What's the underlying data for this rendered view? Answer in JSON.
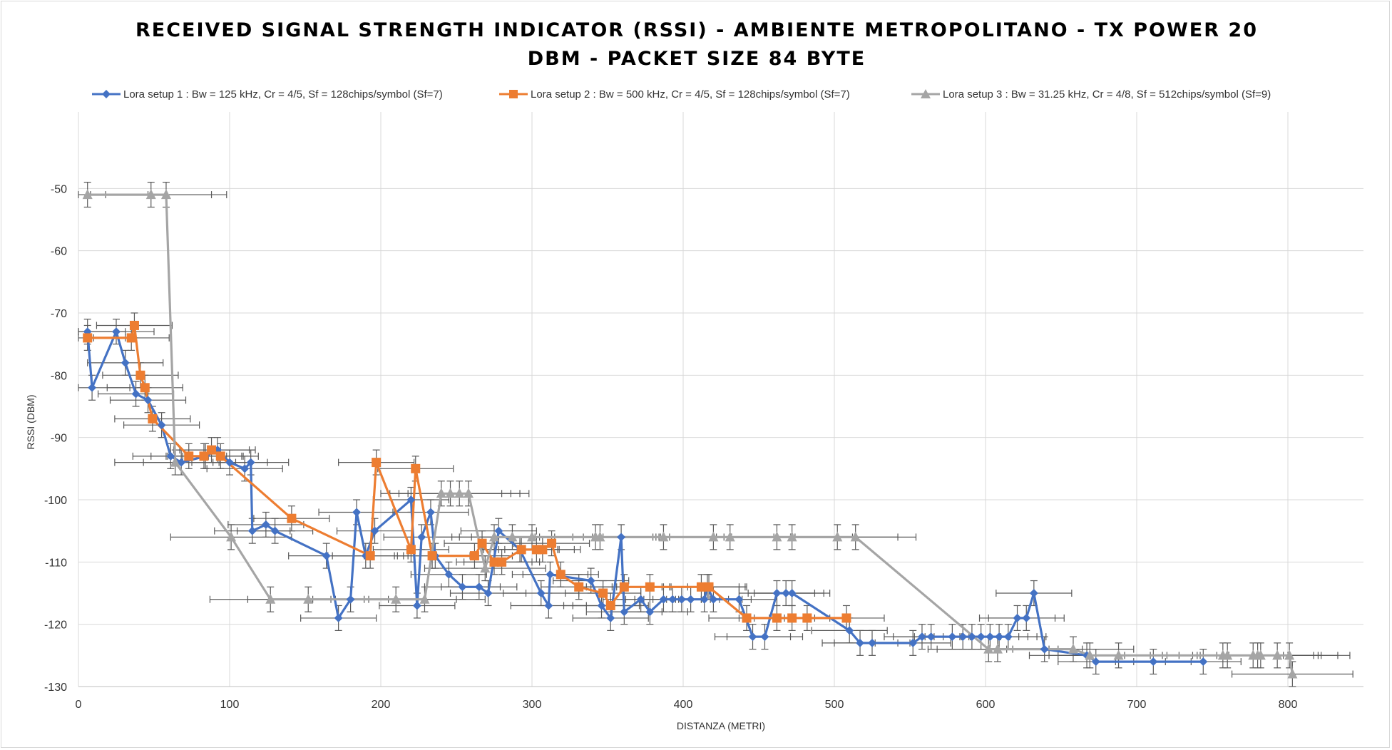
{
  "chart_data": {
    "type": "scatter",
    "title_line1": "RECEIVED SIGNAL STRENGTH INDICATOR (RSSI) - AMBIENTE METROPOLITANO - TX POWER 20",
    "title_line2": "DBM - PACKET SIZE 84 BYTE",
    "xlabel": "DISTANZA (METRI)",
    "ylabel": "RSSI (DBM)",
    "xlim": [
      0,
      850
    ],
    "ylim": [
      -130,
      -40
    ],
    "x_ticks": [
      0,
      100,
      200,
      300,
      400,
      500,
      600,
      700,
      800
    ],
    "y_ticks": [
      -50,
      -60,
      -70,
      -80,
      -90,
      -100,
      -110,
      -120,
      -130
    ],
    "grid": true,
    "legend_position": "top",
    "series": [
      {
        "name": "Lora setup 1 : Bw = 125 kHz, Cr = 4/5, Sf = 128chips/symbol (Sf=7)",
        "color": "#4472C4",
        "marker": "diamond",
        "x": [
          6,
          9,
          25,
          31,
          38,
          46,
          55,
          61,
          68,
          84,
          92,
          100,
          110,
          114,
          115,
          124,
          130,
          164,
          172,
          180,
          184,
          190,
          196,
          220,
          224,
          227,
          233,
          236,
          245,
          254,
          265,
          271,
          278,
          292,
          306,
          311,
          312,
          339,
          346,
          352,
          359,
          361,
          372,
          378,
          387,
          393,
          399,
          405,
          414,
          416,
          420,
          437,
          446,
          454,
          462,
          468,
          472,
          510,
          517,
          525,
          552,
          558,
          564,
          578,
          585,
          591,
          597,
          603,
          609,
          615,
          621,
          627,
          632,
          639,
          667,
          673,
          711,
          744
        ],
        "y": [
          -73,
          -82,
          -73,
          -78,
          -83,
          -84,
          -88,
          -93,
          -94,
          -93,
          -92,
          -94,
          -95,
          -94,
          -105,
          -104,
          -105,
          -109,
          -119,
          -116,
          -102,
          -109,
          -105,
          -100,
          -117,
          -106,
          -102,
          -109,
          -112,
          -114,
          -114,
          -115,
          -105,
          -108,
          -115,
          -117,
          -112,
          -113,
          -117,
          -119,
          -106,
          -118,
          -116,
          -118,
          -116,
          -116,
          -116,
          -116,
          -116,
          -114,
          -116,
          -116,
          -122,
          -122,
          -115,
          -115,
          -115,
          -121,
          -123,
          -123,
          -123,
          -122,
          -122,
          -122,
          -122,
          -122,
          -122,
          -122,
          -122,
          -122,
          -119,
          -119,
          -115,
          -124,
          -125,
          -126,
          -126,
          -126
        ]
      },
      {
        "name": "Lora setup 2 : Bw = 500 kHz, Cr = 4/5, Sf = 128chips/symbol (Sf=7)",
        "color": "#ED7D31",
        "marker": "square",
        "x": [
          6,
          35,
          37,
          41,
          44,
          49,
          73,
          83,
          88,
          94,
          141,
          193,
          197,
          220,
          223,
          234,
          262,
          267,
          275,
          280,
          293,
          303,
          307,
          313,
          319,
          331,
          347,
          352,
          361,
          378,
          412,
          417,
          442,
          462,
          472,
          482,
          508
        ],
        "y": [
          -74,
          -74,
          -72,
          -80,
          -82,
          -87,
          -93,
          -93,
          -92,
          -93,
          -103,
          -109,
          -94,
          -108,
          -95,
          -109,
          -109,
          -107,
          -110,
          -110,
          -108,
          -108,
          -108,
          -107,
          -112,
          -114,
          -115,
          -117,
          -114,
          -114,
          -114,
          -114,
          -119,
          -119,
          -119,
          -119,
          -119
        ]
      },
      {
        "name": "Lora setup 3 : Bw = 31.25 kHz, Cr = 4/8, Sf = 512chips/symbol (Sf=9)",
        "color": "#A5A5A5",
        "marker": "triangle",
        "x": [
          6,
          48,
          58,
          64,
          101,
          127,
          152,
          210,
          229,
          240,
          246,
          252,
          258,
          269,
          275,
          287,
          300,
          342,
          345,
          387,
          420,
          431,
          462,
          472,
          502,
          514,
          602,
          608,
          658,
          669,
          688,
          757,
          760,
          777,
          780,
          782,
          793,
          801,
          803
        ],
        "y": [
          -51,
          -51,
          -51,
          -94,
          -106,
          -116,
          -116,
          -116,
          -116,
          -99,
          -99,
          -99,
          -99,
          -111,
          -106,
          -106,
          -106,
          -106,
          -106,
          -106,
          -106,
          -106,
          -106,
          -106,
          -106,
          -106,
          -124,
          -124,
          -124,
          -125,
          -125,
          -125,
          -125,
          -125,
          -125,
          -125,
          -125,
          -125,
          -128
        ]
      }
    ]
  }
}
